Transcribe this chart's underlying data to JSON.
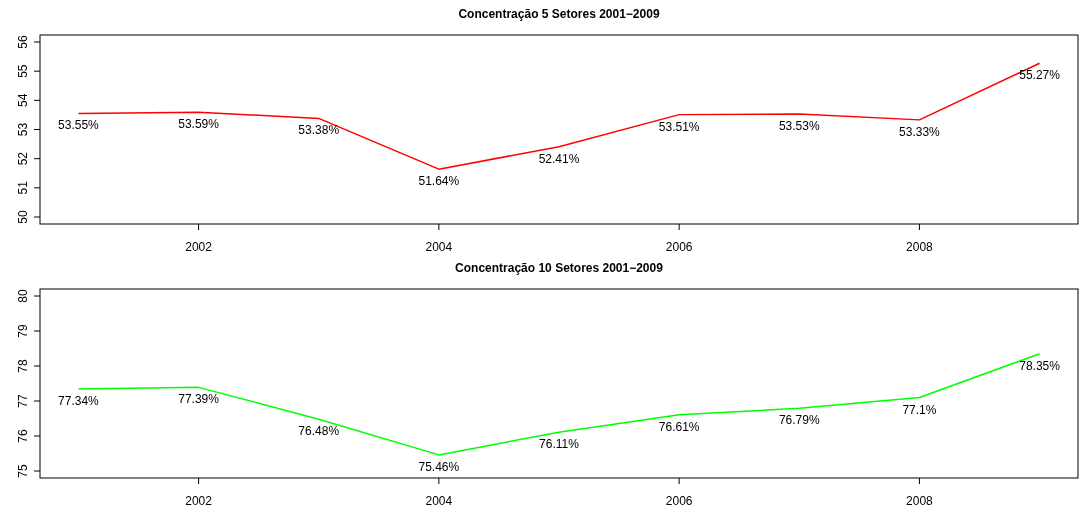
{
  "chart_data": [
    {
      "type": "line",
      "title": "Concentração 5 Setores 2001−2009",
      "x": [
        2001,
        2002,
        2003,
        2004,
        2005,
        2006,
        2007,
        2008,
        2009
      ],
      "xlim": [
        2000.68,
        2009.32
      ],
      "xticks": [
        2002,
        2004,
        2006,
        2008
      ],
      "ylim": [
        49.76,
        56.24
      ],
      "yticks": [
        50,
        51,
        52,
        53,
        54,
        55,
        56
      ],
      "grid": false,
      "marker": "none",
      "line_style": "solid",
      "series": [
        {
          "color": "#ff0000",
          "values": [
            53.55,
            53.59,
            53.38,
            51.64,
            52.41,
            53.51,
            53.53,
            53.33,
            55.27
          ],
          "value_labels": [
            "53.55%",
            "53.59%",
            "53.38%",
            "51.64%",
            "52.41%",
            "53.51%",
            "53.53%",
            "53.33%",
            "55.27%"
          ]
        }
      ]
    },
    {
      "type": "line",
      "title": "Concentração 10 Setores 2001−2009",
      "x": [
        2001,
        2002,
        2003,
        2004,
        2005,
        2006,
        2007,
        2008,
        2009
      ],
      "xlim": [
        2000.68,
        2009.32
      ],
      "xticks": [
        2002,
        2004,
        2006,
        2008
      ],
      "ylim": [
        74.8,
        80.2
      ],
      "yticks": [
        75,
        76,
        77,
        78,
        79,
        80
      ],
      "grid": false,
      "marker": "none",
      "line_style": "solid",
      "series": [
        {
          "color": "#00ff00",
          "values": [
            77.34,
            77.39,
            76.48,
            75.46,
            76.11,
            76.61,
            76.79,
            77.1,
            78.35
          ],
          "value_labels": [
            "77.34%",
            "77.39%",
            "76.48%",
            "75.46%",
            "76.11%",
            "76.61%",
            "76.79%",
            "77.1%",
            "78.35%"
          ]
        }
      ]
    }
  ]
}
